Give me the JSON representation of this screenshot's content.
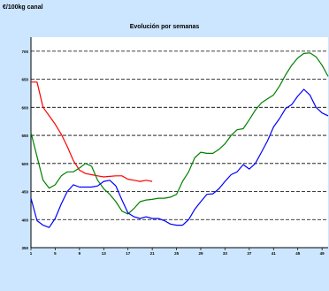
{
  "chart_data": {
    "type": "line",
    "title": "Evolución por semanas",
    "unit_label": "€/100kg canal",
    "xlabel": "",
    "ylabel": "",
    "x_ticks": [
      "1",
      "5",
      "9",
      "13",
      "17",
      "21",
      "25",
      "29",
      "33",
      "37",
      "41",
      "45",
      "49"
    ],
    "y_ticks": [
      "350",
      "400",
      "450",
      "500",
      "550",
      "600",
      "650",
      "700"
    ],
    "xlim": [
      1,
      50
    ],
    "ylim": [
      350,
      725
    ],
    "grid": "horizontal dashed",
    "series": [
      {
        "color": "#ff0000",
        "points": [
          [
            1,
            645
          ],
          [
            2,
            645
          ],
          [
            3,
            600
          ],
          [
            4,
            585
          ],
          [
            5,
            570
          ],
          [
            6,
            552
          ],
          [
            7,
            530
          ],
          [
            8,
            505
          ],
          [
            9,
            488
          ],
          [
            10,
            482
          ],
          [
            11,
            480
          ],
          [
            12,
            478
          ],
          [
            13,
            476
          ],
          [
            14,
            477
          ],
          [
            15,
            478
          ],
          [
            16,
            478
          ],
          [
            17,
            472
          ],
          [
            18,
            470
          ],
          [
            19,
            468
          ],
          [
            20,
            470
          ],
          [
            21,
            468
          ]
        ]
      },
      {
        "color": "#008000",
        "points": [
          [
            1,
            555
          ],
          [
            2,
            512
          ],
          [
            3,
            470
          ],
          [
            4,
            456
          ],
          [
            5,
            462
          ],
          [
            6,
            478
          ],
          [
            7,
            485
          ],
          [
            8,
            485
          ],
          [
            9,
            492
          ],
          [
            10,
            500
          ],
          [
            11,
            495
          ],
          [
            12,
            470
          ],
          [
            13,
            455
          ],
          [
            14,
            445
          ],
          [
            15,
            432
          ],
          [
            16,
            415
          ],
          [
            17,
            410
          ],
          [
            18,
            420
          ],
          [
            19,
            432
          ],
          [
            20,
            435
          ],
          [
            21,
            436
          ],
          [
            22,
            438
          ],
          [
            23,
            438
          ],
          [
            24,
            440
          ],
          [
            25,
            445
          ],
          [
            26,
            468
          ],
          [
            27,
            485
          ],
          [
            28,
            510
          ],
          [
            29,
            520
          ],
          [
            30,
            518
          ],
          [
            31,
            518
          ],
          [
            32,
            525
          ],
          [
            33,
            535
          ],
          [
            34,
            550
          ],
          [
            35,
            560
          ],
          [
            36,
            562
          ],
          [
            37,
            578
          ],
          [
            38,
            595
          ],
          [
            39,
            608
          ],
          [
            40,
            615
          ],
          [
            41,
            622
          ],
          [
            42,
            638
          ],
          [
            43,
            658
          ],
          [
            44,
            675
          ],
          [
            45,
            688
          ],
          [
            46,
            696
          ],
          [
            47,
            697
          ],
          [
            48,
            690
          ],
          [
            49,
            675
          ],
          [
            50,
            655
          ]
        ]
      },
      {
        "color": "#0000ff",
        "points": [
          [
            1,
            438
          ],
          [
            2,
            398
          ],
          [
            3,
            390
          ],
          [
            4,
            386
          ],
          [
            5,
            402
          ],
          [
            6,
            428
          ],
          [
            7,
            450
          ],
          [
            8,
            462
          ],
          [
            9,
            458
          ],
          [
            10,
            458
          ],
          [
            11,
            458
          ],
          [
            12,
            460
          ],
          [
            13,
            468
          ],
          [
            14,
            470
          ],
          [
            15,
            460
          ],
          [
            16,
            435
          ],
          [
            17,
            412
          ],
          [
            18,
            405
          ],
          [
            19,
            402
          ],
          [
            20,
            405
          ],
          [
            21,
            402
          ],
          [
            22,
            402
          ],
          [
            23,
            398
          ],
          [
            24,
            392
          ],
          [
            25,
            390
          ],
          [
            26,
            390
          ],
          [
            27,
            400
          ],
          [
            28,
            418
          ],
          [
            29,
            432
          ],
          [
            30,
            445
          ],
          [
            31,
            446
          ],
          [
            32,
            455
          ],
          [
            33,
            468
          ],
          [
            34,
            480
          ],
          [
            35,
            485
          ],
          [
            36,
            498
          ],
          [
            37,
            490
          ],
          [
            38,
            500
          ],
          [
            39,
            520
          ],
          [
            40,
            540
          ],
          [
            41,
            565
          ],
          [
            42,
            580
          ],
          [
            43,
            598
          ],
          [
            44,
            605
          ],
          [
            45,
            620
          ],
          [
            46,
            632
          ],
          [
            47,
            622
          ],
          [
            48,
            600
          ],
          [
            49,
            590
          ],
          [
            50,
            585
          ]
        ]
      }
    ]
  }
}
